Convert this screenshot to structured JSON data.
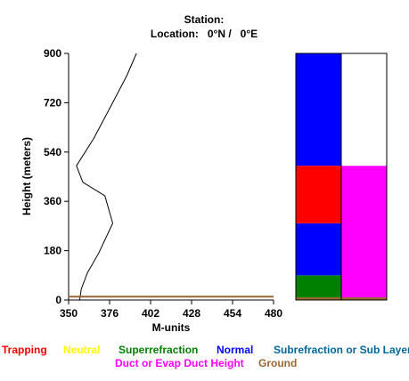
{
  "title_line1": "Station:",
  "title_line2": "Location:   0°N /   0°E",
  "chart_data": {
    "type": "line",
    "title": "Station:  Location: 0°N / 0°E",
    "xlabel": "M-units",
    "ylabel": "Height (meters)",
    "xlim": [
      350,
      480
    ],
    "ylim": [
      0,
      900
    ],
    "x_ticks": [
      "350",
      "376",
      "402",
      "428",
      "454",
      "480"
    ],
    "y_ticks": [
      "0",
      "180",
      "360",
      "540",
      "720",
      "900"
    ],
    "grid": false,
    "series": [
      {
        "points": [
          {
            "x": 357,
            "y": 0
          },
          {
            "x": 358,
            "y": 40
          },
          {
            "x": 362,
            "y": 100
          },
          {
            "x": 369,
            "y": 170
          },
          {
            "x": 378,
            "y": 280
          },
          {
            "x": 373,
            "y": 380
          },
          {
            "x": 359,
            "y": 430
          },
          {
            "x": 355,
            "y": 490
          },
          {
            "x": 366,
            "y": 590
          },
          {
            "x": 377,
            "y": 710
          },
          {
            "x": 387,
            "y": 820
          },
          {
            "x": 393,
            "y": 900
          }
        ],
        "color": "#000000"
      },
      {
        "points": [
          {
            "x": 350,
            "y": 12
          },
          {
            "x": 480,
            "y": 12
          }
        ],
        "color": "#996633"
      }
    ],
    "duct_columns": [
      {
        "segments": [
          {
            "from": 0,
            "to": 10,
            "type": "Ground",
            "color": "#996633"
          },
          {
            "from": 10,
            "to": 90,
            "type": "Superrefraction",
            "color": "#008000"
          },
          {
            "from": 90,
            "to": 280,
            "type": "Normal",
            "color": "#0000ff"
          },
          {
            "from": 280,
            "to": 490,
            "type": "Trapping",
            "color": "#ff0000"
          },
          {
            "from": 490,
            "to": 900,
            "type": "Normal",
            "color": "#0000ff"
          }
        ]
      },
      {
        "segments": [
          {
            "from": 0,
            "to": 10,
            "type": "Ground",
            "color": "#996633"
          },
          {
            "from": 10,
            "to": 490,
            "type": "Duct or Evap Duct Height",
            "color": "#ff00ff"
          },
          {
            "from": 490,
            "to": 900,
            "type": "None",
            "color": "#ffffff"
          }
        ]
      }
    ]
  },
  "legend": {
    "row1": [
      {
        "label": "Trapping",
        "color": "#ff0000"
      },
      {
        "label": "Neutral",
        "color": "#ffff00"
      },
      {
        "label": "Superrefraction",
        "color": "#008000"
      },
      {
        "label": "Normal",
        "color": "#0000ff"
      },
      {
        "label": "Subrefraction or Sub Layer",
        "color": "#006699"
      }
    ],
    "row2": [
      {
        "label": "Duct or Evap Duct Height",
        "color": "#ff00ff"
      },
      {
        "label": "Ground",
        "color": "#996633"
      }
    ]
  }
}
